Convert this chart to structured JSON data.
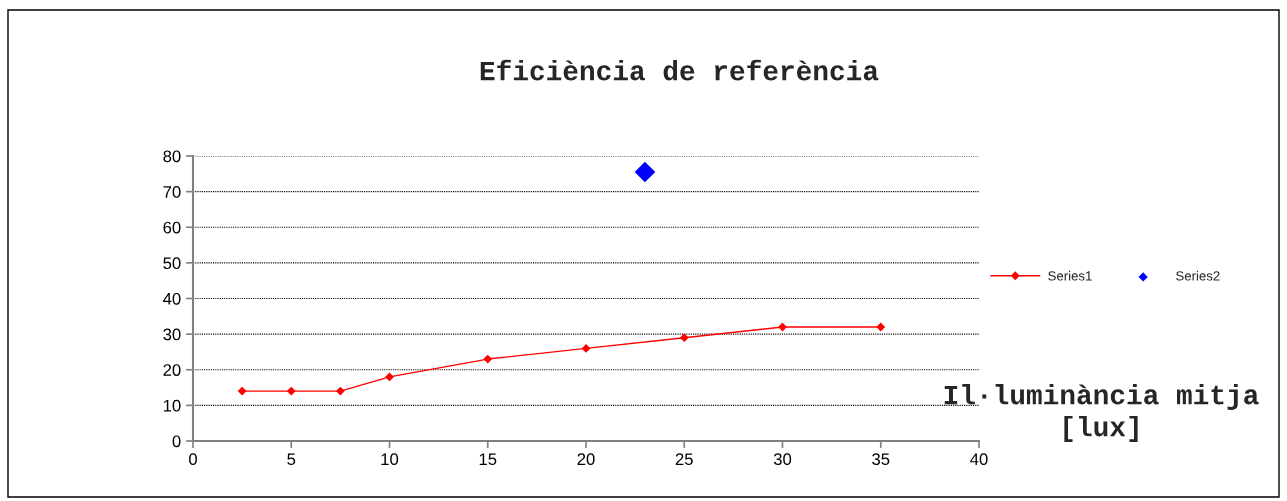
{
  "chart_data": {
    "type": "line",
    "title": "Eficiència de referència",
    "xlabel": "Il·luminància mitja\n[lux]",
    "xlim": [
      0,
      40
    ],
    "xticks": [
      0,
      5,
      10,
      15,
      20,
      25,
      30,
      35,
      40
    ],
    "ylim": [
      0,
      80
    ],
    "yticks": [
      0,
      10,
      20,
      30,
      40,
      50,
      60,
      70,
      80
    ],
    "grid": "y",
    "legend": "right",
    "marker": "diamond",
    "line_style": "solid",
    "series": [
      {
        "name": "Series1",
        "color": "#ff0000",
        "x": [
          2.5,
          5,
          7.5,
          10,
          15,
          20,
          25,
          30,
          35
        ],
        "values": [
          14,
          14,
          14,
          18,
          23,
          26,
          29,
          32,
          32
        ]
      },
      {
        "name": "Series2",
        "type": "scatter",
        "color": "#0000ff",
        "x": [
          23
        ],
        "values": [
          75.5
        ]
      }
    ]
  }
}
